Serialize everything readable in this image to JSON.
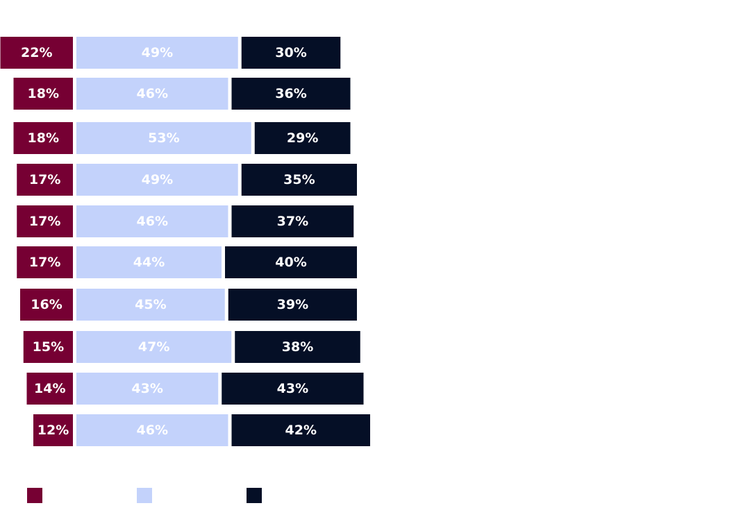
{
  "chart_data": {
    "type": "bar",
    "orientation": "horizontal",
    "stacked": true,
    "value_format": "percent",
    "rows": 10,
    "series": [
      {
        "key": "s1",
        "color": "#760033",
        "values": [
          22,
          18,
          18,
          17,
          17,
          17,
          16,
          15,
          14,
          12
        ],
        "labels": [
          "22%",
          "18%",
          "18%",
          "17%",
          "17%",
          "17%",
          "16%",
          "15%",
          "14%",
          "12%"
        ]
      },
      {
        "key": "s2",
        "color": "#c3d2fb",
        "values": [
          49,
          46,
          53,
          49,
          46,
          44,
          45,
          47,
          43,
          46
        ],
        "labels": [
          "49%",
          "46%",
          "53%",
          "49%",
          "46%",
          "44%",
          "45%",
          "47%",
          "43%",
          "46%"
        ]
      },
      {
        "key": "s3",
        "color": "#050f26",
        "values": [
          30,
          36,
          29,
          35,
          37,
          40,
          39,
          38,
          43,
          42
        ],
        "labels": [
          "30%",
          "36%",
          "29%",
          "35%",
          "37%",
          "40%",
          "39%",
          "38%",
          "43%",
          "42%"
        ]
      }
    ],
    "legend": {
      "position": "bottom",
      "swatches": [
        "#760033",
        "#c3d2fb",
        "#050f26"
      ]
    },
    "grid": false
  }
}
